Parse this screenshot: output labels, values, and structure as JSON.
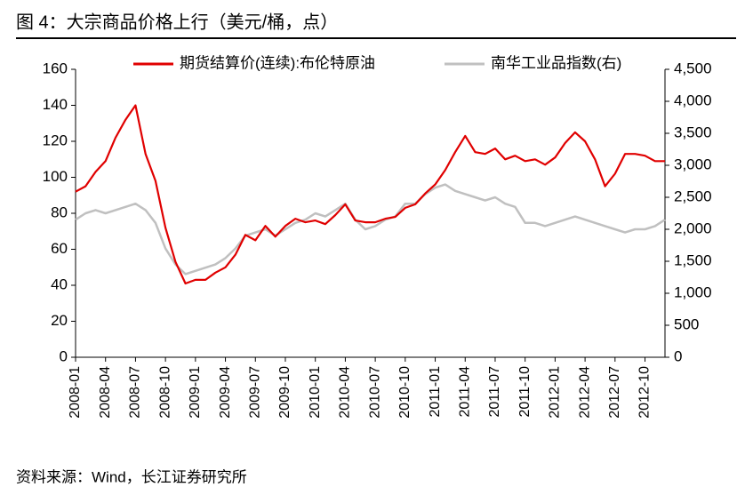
{
  "chart_data": {
    "type": "line",
    "title": "图 4：大宗商品价格上行（美元/桶，点）",
    "source": "资料来源：Wind，长江证券研究所",
    "categories": [
      "2008-01",
      null,
      null,
      "2008-04",
      null,
      null,
      "2008-07",
      null,
      null,
      "2008-10",
      null,
      null,
      "2009-01",
      null,
      null,
      "2009-04",
      null,
      null,
      "2009-07",
      null,
      null,
      "2009-10",
      null,
      null,
      "2010-01",
      null,
      null,
      "2010-04",
      null,
      null,
      "2010-07",
      null,
      null,
      "2010-10",
      null,
      null,
      "2011-01",
      null,
      null,
      "2011-04",
      null,
      null,
      "2011-07",
      null,
      null,
      "2011-10",
      null,
      null,
      "2012-01",
      null,
      null,
      "2012-04",
      null,
      null,
      "2012-07",
      null,
      null,
      "2012-10",
      null,
      null
    ],
    "series": [
      {
        "name": "期货结算价(连续):布伦特原油",
        "color": "#e00000",
        "values": [
          92,
          95,
          103,
          109,
          122,
          132,
          140,
          113,
          98,
          72,
          53,
          41,
          43,
          43,
          47,
          50,
          57,
          68,
          65,
          73,
          67,
          73,
          77,
          75,
          76,
          74,
          79,
          85,
          76,
          75,
          75,
          77,
          78,
          83,
          85,
          91,
          96,
          104,
          114,
          123,
          114,
          113,
          116,
          110,
          112,
          109,
          110,
          107,
          111,
          119,
          125,
          120,
          110,
          95,
          102,
          113,
          113,
          112,
          109,
          109
        ]
      },
      {
        "name": "南华工业品指数(右)",
        "color": "#c0c0c0",
        "axis": "y2",
        "values": [
          2150,
          2250,
          2300,
          2250,
          2300,
          2350,
          2400,
          2300,
          2100,
          1700,
          1450,
          1300,
          1350,
          1400,
          1450,
          1550,
          1700,
          1900,
          1950,
          2000,
          1900,
          2000,
          2100,
          2150,
          2250,
          2200,
          2300,
          2400,
          2150,
          2000,
          2050,
          2150,
          2200,
          2400,
          2400,
          2550,
          2650,
          2700,
          2600,
          2550,
          2500,
          2450,
          2500,
          2400,
          2350,
          2100,
          2100,
          2050,
          2100,
          2150,
          2200,
          2150,
          2100,
          2050,
          2000,
          1950,
          2000,
          2000,
          2050,
          2150
        ]
      }
    ],
    "ylim": [
      0,
      160
    ],
    "yticks": [
      0,
      20,
      40,
      60,
      80,
      100,
      120,
      140,
      160
    ],
    "y2lim": [
      0,
      4500
    ],
    "y2ticks": [
      0,
      500,
      {
        "value": 1000,
        "label": "1,000"
      },
      {
        "value": 1500,
        "label": "1,500"
      },
      {
        "value": 2000,
        "label": "2,000"
      },
      {
        "value": 2500,
        "label": "2,500"
      },
      {
        "value": 3000,
        "label": "3,000"
      },
      {
        "value": 3500,
        "label": "3,500"
      },
      {
        "value": 4000,
        "label": "4,000"
      },
      {
        "value": 4500,
        "label": "4,500"
      }
    ],
    "legend": "top"
  }
}
